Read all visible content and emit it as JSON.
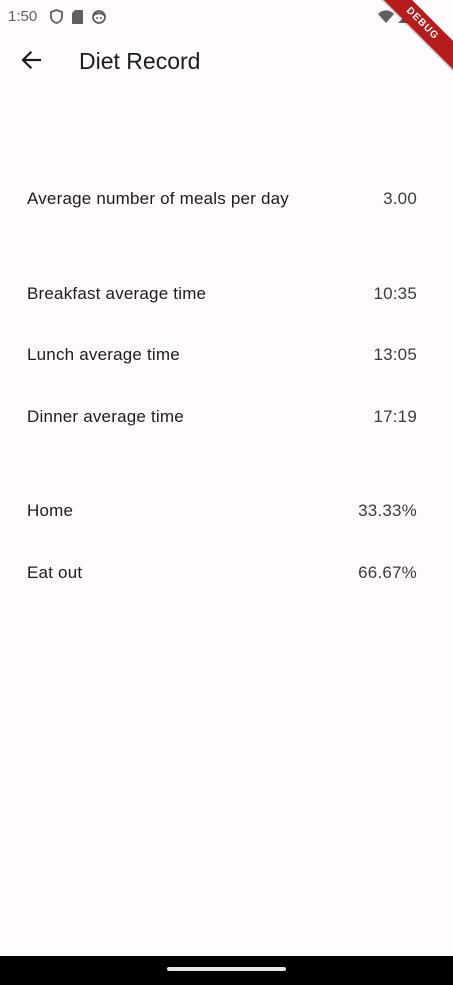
{
  "status_bar": {
    "time": "1:50",
    "left_icons": [
      "shield-icon",
      "sd-card-icon",
      "face-icon"
    ],
    "right_icons": [
      "wifi-icon",
      "cell-signal-icon",
      "battery-icon"
    ],
    "debug_label": "DEBUG"
  },
  "app_bar": {
    "title": "Diet Record",
    "back_icon": "arrow-back-icon"
  },
  "meals": {
    "label": "Average number of meals per day",
    "value": "3.00"
  },
  "times": [
    {
      "label": "Breakfast average time",
      "value": "10:35"
    },
    {
      "label": "Lunch average time",
      "value": "13:05"
    },
    {
      "label": "Dinner average time",
      "value": "17:19"
    }
  ],
  "locations": [
    {
      "label": "Home",
      "value": "33.33%"
    },
    {
      "label": "Eat out",
      "value": "66.67%"
    }
  ],
  "colors": {
    "background": "#fffbfe",
    "text": "#1c1b1f",
    "debug_ribbon": "#b71c1c"
  }
}
